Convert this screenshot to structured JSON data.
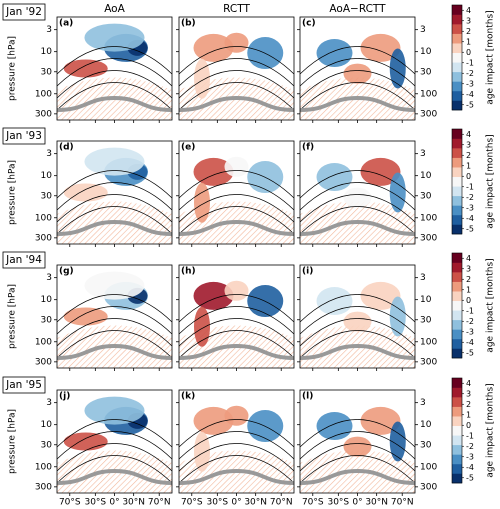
{
  "columns": [
    "AoA",
    "RCTT",
    "AoA−RCTT"
  ],
  "rows": [
    {
      "label": "Jan '92",
      "panels": [
        "(a)",
        "(b)",
        "(c)"
      ]
    },
    {
      "label": "Jan '93",
      "panels": [
        "(d)",
        "(e)",
        "(f)"
      ]
    },
    {
      "label": "Jan '94",
      "panels": [
        "(g)",
        "(h)",
        "(i)"
      ]
    },
    {
      "label": "Jan '95",
      "panels": [
        "(j)",
        "(k)",
        "(l)"
      ]
    }
  ],
  "y_axis": {
    "label": "pressure [hPa]",
    "log": true,
    "lim": [
      1.5,
      420
    ],
    "ticks": [
      3,
      10,
      30,
      100,
      300
    ]
  },
  "x_axis": {
    "lim": [
      -90,
      90
    ],
    "ticks": [
      {
        "value": -70,
        "label": "70°S"
      },
      {
        "value": -30,
        "label": "30°S"
      },
      {
        "value": 0,
        "label": "0°"
      },
      {
        "value": 30,
        "label": "30°N"
      },
      {
        "value": 70,
        "label": "70°N"
      }
    ]
  },
  "colorbar": {
    "label": "age impact [months]",
    "lim": [
      -5.5,
      4.5
    ],
    "ticks": [
      4,
      3,
      2,
      1,
      0,
      -1,
      -2,
      -3,
      -4,
      -5
    ],
    "colors": [
      "#08306b",
      "#1f5fa0",
      "#4a8fc4",
      "#8fc0de",
      "#d2e5f1",
      "#f7f7f7",
      "#f9d3c0",
      "#ed9b7d",
      "#cc5147",
      "#a01a2c",
      "#67001f"
    ]
  }
}
